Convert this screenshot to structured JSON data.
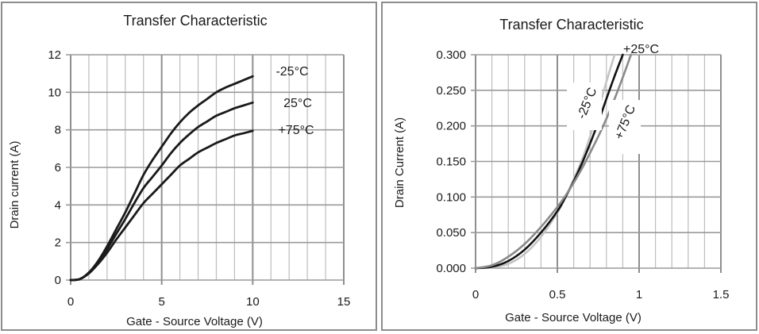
{
  "chart_data": [
    {
      "type": "line",
      "title": "Transfer Characteristic",
      "xlabel": "Gate - Source Voltage (V)",
      "ylabel": "Drain current (A)",
      "xlim": [
        0,
        15
      ],
      "ylim": [
        0,
        12
      ],
      "xticks": [
        0,
        5,
        10,
        15
      ],
      "yticks": [
        0,
        2,
        4,
        6,
        8,
        10,
        12
      ],
      "x_minor_step": 1,
      "grid": true,
      "legend": "inline-right",
      "series": [
        {
          "name": "-25°C",
          "color": "#1a1a1a",
          "x": [
            0,
            0.5,
            1,
            1.5,
            2,
            2.5,
            3,
            3.5,
            4,
            4.5,
            5,
            5.5,
            6,
            6.5,
            7,
            7.5,
            8,
            8.5,
            9,
            9.5,
            10
          ],
          "y": [
            0,
            0.05,
            0.4,
            1.0,
            1.8,
            2.7,
            3.6,
            4.6,
            5.6,
            6.4,
            7.1,
            7.8,
            8.4,
            8.9,
            9.3,
            9.65,
            10.0,
            10.25,
            10.45,
            10.65,
            10.85
          ]
        },
        {
          "name": "25°C",
          "color": "#1a1a1a",
          "x": [
            0,
            0.5,
            1,
            1.5,
            2,
            2.5,
            3,
            3.5,
            4,
            4.5,
            5,
            5.5,
            6,
            6.5,
            7,
            7.5,
            8,
            8.5,
            9,
            9.5,
            10
          ],
          "y": [
            0,
            0.05,
            0.38,
            0.95,
            1.65,
            2.45,
            3.25,
            4.1,
            4.9,
            5.5,
            6.1,
            6.75,
            7.3,
            7.75,
            8.15,
            8.45,
            8.75,
            8.95,
            9.15,
            9.3,
            9.45
          ]
        },
        {
          "name": "+75°C",
          "color": "#1a1a1a",
          "x": [
            0,
            0.5,
            1,
            1.5,
            2,
            2.5,
            3,
            3.5,
            4,
            4.5,
            5,
            5.5,
            6,
            6.5,
            7,
            7.5,
            8,
            8.5,
            9,
            9.5,
            10
          ],
          "y": [
            0,
            0.05,
            0.35,
            0.85,
            1.45,
            2.15,
            2.8,
            3.45,
            4.1,
            4.6,
            5.1,
            5.6,
            6.1,
            6.45,
            6.8,
            7.05,
            7.3,
            7.5,
            7.7,
            7.82,
            7.95
          ]
        }
      ]
    },
    {
      "type": "line",
      "title": "Transfer Characteristic",
      "xlabel": "Gate - Source Voltage  (V)",
      "ylabel": "Drain Current  (A)",
      "xlim": [
        0,
        1.5
      ],
      "ylim": [
        0,
        0.3
      ],
      "xticks": [
        0,
        0.5,
        1,
        1.5
      ],
      "xtick_labels": [
        "0",
        "0.5",
        "1",
        "1.5"
      ],
      "yticks": [
        0,
        0.05,
        0.1,
        0.15,
        0.2,
        0.25,
        0.3
      ],
      "ytick_labels": [
        "0.000",
        "0.050",
        "0.100",
        "0.150",
        "0.200",
        "0.250",
        "0.300"
      ],
      "x_minor_step": 0.1,
      "grid": true,
      "legend": "inline-on-curves",
      "series": [
        {
          "name": "-25°C",
          "color": "#c4c4c4",
          "x": [
            0,
            0.1,
            0.2,
            0.3,
            0.4,
            0.5,
            0.55,
            0.6,
            0.65,
            0.7,
            0.75,
            0.8,
            0.85
          ],
          "y": [
            0,
            0.001,
            0.006,
            0.02,
            0.044,
            0.078,
            0.1,
            0.125,
            0.152,
            0.185,
            0.222,
            0.262,
            0.3
          ]
        },
        {
          "name": "+25°C",
          "color": "#111111",
          "x": [
            0,
            0.1,
            0.2,
            0.3,
            0.4,
            0.5,
            0.55,
            0.6,
            0.65,
            0.7,
            0.75,
            0.8,
            0.85,
            0.9
          ],
          "y": [
            0,
            0.002,
            0.01,
            0.026,
            0.05,
            0.08,
            0.1,
            0.122,
            0.147,
            0.175,
            0.205,
            0.238,
            0.27,
            0.3
          ]
        },
        {
          "name": "+75°C",
          "color": "#8a8a8a",
          "x": [
            0,
            0.1,
            0.2,
            0.3,
            0.4,
            0.5,
            0.55,
            0.6,
            0.65,
            0.7,
            0.75,
            0.8,
            0.85,
            0.9,
            0.95
          ],
          "y": [
            0,
            0.004,
            0.016,
            0.034,
            0.058,
            0.086,
            0.102,
            0.12,
            0.14,
            0.162,
            0.185,
            0.21,
            0.238,
            0.268,
            0.3
          ]
        }
      ]
    }
  ]
}
